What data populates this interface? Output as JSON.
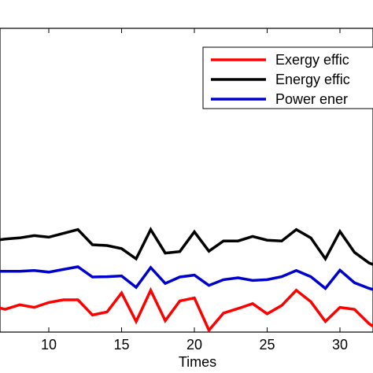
{
  "chart_data": {
    "type": "line",
    "xlabel": "Times",
    "ylabel": "",
    "title": "",
    "x_ticks": [
      10,
      15,
      20,
      25,
      30
    ],
    "xlim": [
      6,
      32.5
    ],
    "ylim": [
      0.2,
      1.0
    ],
    "grid": false,
    "legend_position": "top-right",
    "series": [
      {
        "name": "Exergy effic",
        "color": "#ff0000",
        "x": [
          6,
          7,
          8,
          9,
          10,
          11,
          12,
          13,
          14,
          15,
          16,
          17,
          18,
          19,
          20,
          21,
          22,
          23,
          24,
          25,
          26,
          27,
          28,
          29,
          30,
          31,
          32,
          32.5
        ],
        "y": [
          0.27,
          0.26,
          0.272,
          0.265,
          0.278,
          0.285,
          0.285,
          0.245,
          0.253,
          0.303,
          0.228,
          0.31,
          0.23,
          0.282,
          0.29,
          0.205,
          0.25,
          0.262,
          0.275,
          0.248,
          0.27,
          0.31,
          0.28,
          0.228,
          0.265,
          0.26,
          0.222,
          0.21
        ]
      },
      {
        "name": "Energy effic",
        "color": "#000000",
        "x": [
          6,
          7,
          8,
          9,
          10,
          11,
          12,
          13,
          14,
          15,
          16,
          17,
          18,
          19,
          20,
          21,
          22,
          23,
          24,
          25,
          26,
          27,
          28,
          29,
          30,
          31,
          32,
          32.5
        ],
        "y": [
          0.44,
          0.445,
          0.448,
          0.454,
          0.45,
          0.46,
          0.47,
          0.43,
          0.428,
          0.42,
          0.393,
          0.47,
          0.408,
          0.412,
          0.464,
          0.413,
          0.44,
          0.44,
          0.452,
          0.442,
          0.44,
          0.47,
          0.448,
          0.393,
          0.465,
          0.41,
          0.382,
          0.375
        ]
      },
      {
        "name": "Power ener",
        "color": "#0000cc",
        "x": [
          6,
          7,
          8,
          9,
          10,
          11,
          12,
          13,
          14,
          15,
          16,
          17,
          18,
          19,
          20,
          21,
          22,
          23,
          24,
          25,
          26,
          27,
          28,
          29,
          30,
          31,
          32,
          32.5
        ],
        "y": [
          0.36,
          0.36,
          0.36,
          0.362,
          0.358,
          0.365,
          0.372,
          0.345,
          0.346,
          0.348,
          0.318,
          0.37,
          0.328,
          0.345,
          0.35,
          0.323,
          0.338,
          0.343,
          0.336,
          0.338,
          0.346,
          0.362,
          0.346,
          0.315,
          0.363,
          0.33,
          0.315,
          0.31
        ]
      }
    ]
  }
}
